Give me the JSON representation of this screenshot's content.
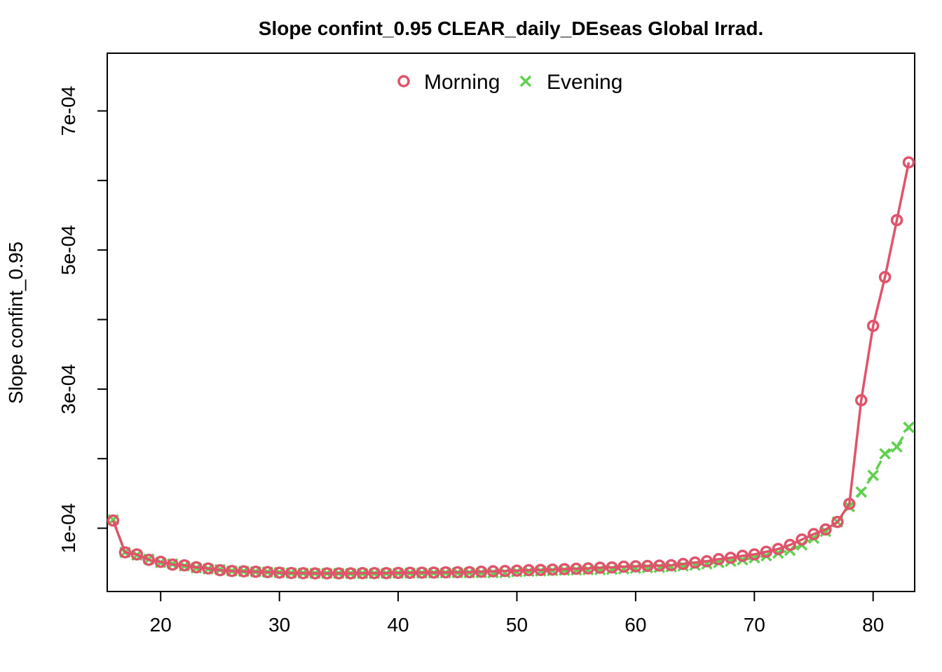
{
  "chart_data": {
    "type": "line",
    "title": "Slope confint_0.95 CLEAR_daily_DEseas Global Irrad.",
    "xlabel": "",
    "ylabel": "Slope confint_0.95",
    "xlim": [
      15.5,
      83.5
    ],
    "ylim": [
      9e-06,
      0.000783
    ],
    "x_ticks": [
      20,
      30,
      40,
      50,
      60,
      70,
      80
    ],
    "x_tick_labels": [
      "20",
      "30",
      "40",
      "50",
      "60",
      "70",
      "80"
    ],
    "y_ticks": [
      0.0001,
      0.0002,
      0.0003,
      0.0004,
      0.0005,
      0.0006,
      0.0007
    ],
    "y_tick_labels": [
      "1e-04",
      "",
      "3e-04",
      "",
      "5e-04",
      "",
      "7e-04"
    ],
    "legend_position": "top",
    "grid": false,
    "series": [
      {
        "name": "Morning",
        "color": "#DF536B",
        "marker": "circle",
        "line_style": "solid",
        "x": [
          16,
          17,
          18,
          19,
          20,
          21,
          22,
          23,
          24,
          25,
          26,
          27,
          28,
          29,
          30,
          31,
          32,
          33,
          34,
          35,
          36,
          37,
          38,
          39,
          40,
          41,
          42,
          43,
          44,
          45,
          46,
          47,
          48,
          49,
          50,
          51,
          52,
          53,
          54,
          55,
          56,
          57,
          58,
          59,
          60,
          61,
          62,
          63,
          64,
          65,
          66,
          67,
          68,
          69,
          70,
          71,
          72,
          73,
          74,
          75,
          76,
          77,
          78,
          79,
          80,
          81,
          82,
          83
        ],
        "values": [
          0.000111,
          6.53e-05,
          6.23e-05,
          5.45e-05,
          5.16e-05,
          4.77e-05,
          4.66e-05,
          4.38e-05,
          4.21e-05,
          3.96e-05,
          3.85e-05,
          3.8e-05,
          3.74e-05,
          3.69e-05,
          3.61e-05,
          3.56e-05,
          3.53e-05,
          3.51e-05,
          3.51e-05,
          3.51e-05,
          3.51e-05,
          3.54e-05,
          3.54e-05,
          3.54e-05,
          3.57e-05,
          3.59e-05,
          3.61e-05,
          3.62e-05,
          3.65e-05,
          3.67e-05,
          3.68e-05,
          3.74e-05,
          3.8e-05,
          3.85e-05,
          3.9e-05,
          3.97e-05,
          3.99e-05,
          4.05e-05,
          4.11e-05,
          4.17e-05,
          4.22e-05,
          4.32e-05,
          4.36e-05,
          4.47e-05,
          4.52e-05,
          4.58e-05,
          4.63e-05,
          4.68e-05,
          4.86e-05,
          5.06e-05,
          5.25e-05,
          5.55e-05,
          5.74e-05,
          6.03e-05,
          6.23e-05,
          6.61e-05,
          7.01e-05,
          7.59e-05,
          8.37e-05,
          9.15e-05,
          9.82e-05,
          0.000109,
          0.000135,
          0.000284,
          0.000391,
          0.000461,
          0.000543,
          0.000626
        ]
      },
      {
        "name": "Evening",
        "color": "#61D04F",
        "marker": "x",
        "line_style": "dashed",
        "x": [
          16,
          17,
          18,
          19,
          20,
          21,
          22,
          23,
          24,
          25,
          26,
          27,
          28,
          29,
          30,
          31,
          32,
          33,
          34,
          35,
          36,
          37,
          38,
          39,
          40,
          41,
          42,
          43,
          44,
          45,
          46,
          47,
          48,
          49,
          50,
          51,
          52,
          53,
          54,
          55,
          56,
          57,
          58,
          59,
          60,
          61,
          62,
          63,
          64,
          65,
          66,
          67,
          68,
          69,
          70,
          71,
          72,
          73,
          74,
          75,
          76,
          77,
          78,
          79,
          80,
          81,
          82,
          83
        ],
        "values": [
          0.000112,
          6.53e-05,
          6.13e-05,
          5.55e-05,
          5.06e-05,
          4.86e-05,
          4.58e-05,
          4.3e-05,
          4.15e-05,
          4.05e-05,
          3.85e-05,
          3.8e-05,
          3.74e-05,
          3.69e-05,
          3.63e-05,
          3.56e-05,
          3.54e-05,
          3.51e-05,
          3.51e-05,
          3.51e-05,
          3.49e-05,
          3.49e-05,
          3.49e-05,
          3.51e-05,
          3.53e-05,
          3.54e-05,
          3.55e-05,
          3.56e-05,
          3.58e-05,
          3.59e-05,
          3.59e-05,
          3.59e-05,
          3.59e-05,
          3.6e-05,
          3.74e-05,
          3.8e-05,
          3.85e-05,
          3.9e-05,
          3.95e-05,
          3.99e-05,
          4.03e-05,
          4.05e-05,
          4.09e-05,
          4.15e-05,
          4.24e-05,
          4.32e-05,
          4.36e-05,
          4.45e-05,
          4.58e-05,
          4.68e-05,
          4.86e-05,
          5.06e-05,
          5.25e-05,
          5.45e-05,
          5.74e-05,
          6.03e-05,
          6.42e-05,
          6.81e-05,
          7.59e-05,
          8.56e-05,
          9.54e-05,
          0.000109,
          0.000131,
          0.000152,
          0.000176,
          0.000207,
          0.000217,
          0.000245
        ]
      }
    ]
  }
}
